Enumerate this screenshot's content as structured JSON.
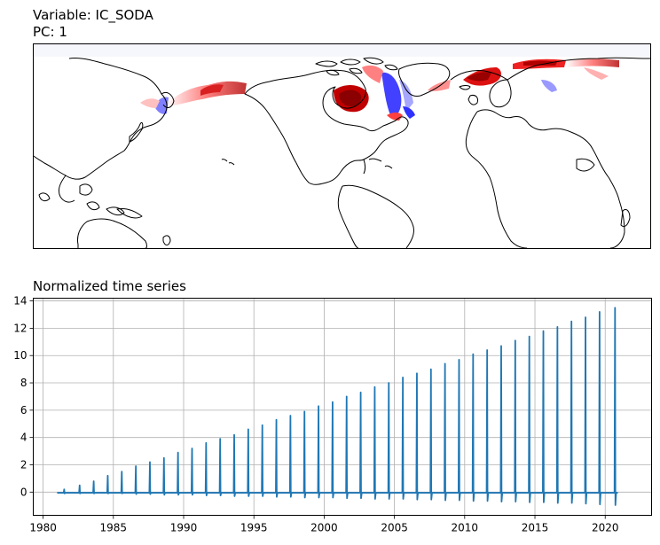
{
  "map": {
    "title_line1": "Variable: IC_SODA",
    "title_line2": "PC: 1",
    "colormap": "bwr",
    "positive_color": "#cc0000",
    "negative_color": "#0000ff",
    "coastline_color": "#000000"
  },
  "chart_data": {
    "type": "line",
    "title": "Normalized time series",
    "xlabel": "",
    "ylabel": "",
    "grid": true,
    "line_color": "#1f77b4",
    "xlim": [
      1979.3,
      2023.3
    ],
    "ylim": [
      -1.7,
      14.2
    ],
    "xticks": [
      1980,
      1985,
      1990,
      1995,
      2000,
      2005,
      2010,
      2015,
      2020
    ],
    "yticks": [
      0,
      2,
      4,
      6,
      8,
      10,
      12,
      14
    ],
    "baseline": -0.05,
    "spikes": {
      "x": [
        1981.5,
        1982.6,
        1983.6,
        1984.6,
        1985.6,
        1986.6,
        1987.6,
        1988.6,
        1989.6,
        1990.6,
        1991.6,
        1992.6,
        1993.6,
        1994.6,
        1995.6,
        1996.6,
        1997.6,
        1998.6,
        1999.6,
        2000.6,
        2001.6,
        2002.6,
        2003.6,
        2004.6,
        2005.6,
        2006.6,
        2007.6,
        2008.6,
        2009.6,
        2010.6,
        2011.6,
        2012.6,
        2013.6,
        2014.6,
        2015.6,
        2016.6,
        2017.6,
        2018.6,
        2019.6,
        2020.7
      ],
      "peak": [
        0.2,
        0.5,
        0.8,
        1.2,
        1.5,
        1.9,
        2.2,
        2.5,
        2.9,
        3.2,
        3.6,
        3.9,
        4.2,
        4.6,
        4.9,
        5.3,
        5.6,
        5.9,
        6.3,
        6.6,
        7.0,
        7.3,
        7.7,
        8.0,
        8.4,
        8.7,
        9.0,
        9.4,
        9.7,
        10.1,
        10.4,
        10.7,
        11.1,
        11.4,
        11.8,
        12.1,
        12.5,
        12.8,
        13.2,
        13.5
      ],
      "trough": [
        -0.1,
        -0.1,
        -0.1,
        -0.1,
        -0.1,
        -0.15,
        -0.15,
        -0.2,
        -0.2,
        -0.2,
        -0.25,
        -0.25,
        -0.3,
        -0.3,
        -0.3,
        -0.35,
        -0.35,
        -0.4,
        -0.4,
        -0.4,
        -0.45,
        -0.45,
        -0.5,
        -0.5,
        -0.5,
        -0.55,
        -0.55,
        -0.6,
        -0.6,
        -0.65,
        -0.65,
        -0.7,
        -0.7,
        -0.75,
        -0.75,
        -0.8,
        -0.8,
        -0.85,
        -0.9,
        -0.95
      ]
    },
    "x_start": 1981.0,
    "x_end": 2020.9
  }
}
